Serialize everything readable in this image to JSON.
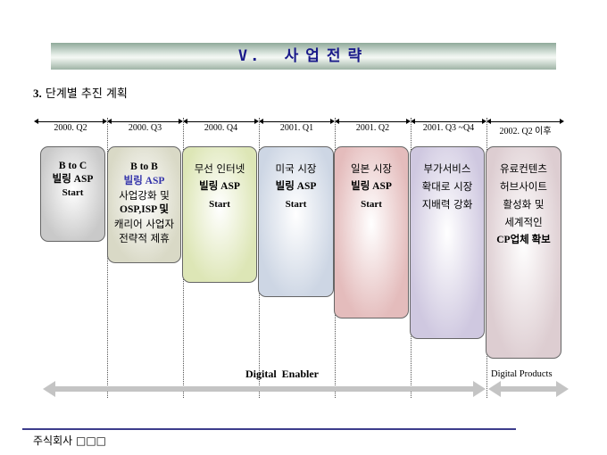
{
  "header": {
    "numeral": "V.",
    "title": "사업전략"
  },
  "section": {
    "number": "3.",
    "title": "단계별 추진 계획"
  },
  "periods": [
    "2000. Q2",
    "2000. Q3",
    "2000. Q4",
    "2001. Q1",
    "2001. Q2",
    "2001. Q3 ~Q4",
    "2002. Q2 이후"
  ],
  "boxes": [
    {
      "lines": [
        "B to C",
        "빌링 ASP",
        "Start"
      ],
      "color": "#c9c9c9"
    },
    {
      "lines": [
        "B to B",
        "빌링 ASP",
        "사업강화 및",
        "OSP,ISP 및",
        "캐리어 사업자",
        "전략적 제휴"
      ],
      "color": "#d9d9c6"
    },
    {
      "lines": [
        "무선 인터넷",
        "빌링 ASP",
        "Start"
      ],
      "color": "#dde6b6"
    },
    {
      "lines": [
        "미국 시장",
        "빌링 ASP",
        "Start"
      ],
      "color": "#cdd6e4"
    },
    {
      "lines": [
        "일본 시장",
        "빌링 ASP",
        "Start"
      ],
      "color": "#e4bcbc"
    },
    {
      "lines": [
        "부가서비스",
        "확대로 시장",
        "지배력 강화"
      ],
      "color": "#cfc8e0"
    },
    {
      "lines": [
        "유료컨텐츠",
        "허브사이트",
        "활성화 및",
        "세계적인",
        "CP업체 확보"
      ],
      "color": "#ddcdd1"
    }
  ],
  "phases": {
    "enabler": "Digital  Enabler",
    "products": "Digital Products"
  },
  "footer": {
    "company": "주식회사 □□□"
  }
}
